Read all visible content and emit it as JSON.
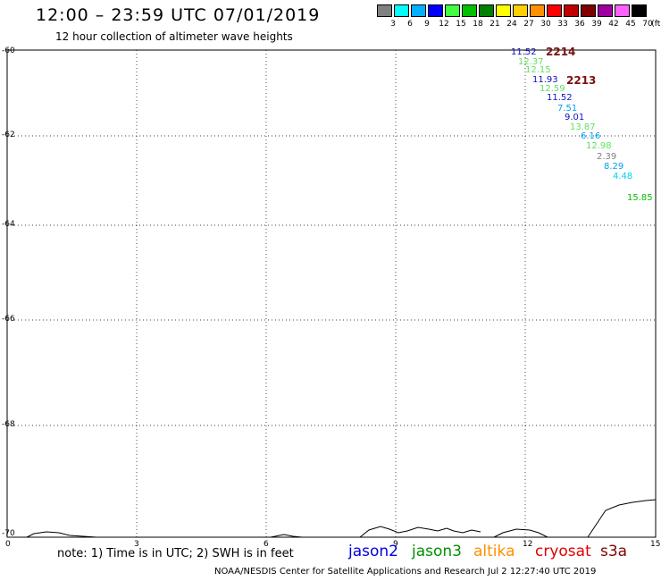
{
  "title": "12:00 – 23:59 UTC 07/01/2019",
  "subtitle": "12 hour collection of altimeter wave heights",
  "legend": {
    "unit": "(ft)",
    "items": [
      {
        "label": "3",
        "color": "#808080"
      },
      {
        "label": "6",
        "color": "#00ffff"
      },
      {
        "label": "9",
        "color": "#00b0ff"
      },
      {
        "label": "12",
        "color": "#0000ff"
      },
      {
        "label": "15",
        "color": "#40ff40"
      },
      {
        "label": "18",
        "color": "#00c000"
      },
      {
        "label": "21",
        "color": "#008000"
      },
      {
        "label": "24",
        "color": "#ffff00"
      },
      {
        "label": "27",
        "color": "#ffd000"
      },
      {
        "label": "30",
        "color": "#ff9000"
      },
      {
        "label": "33",
        "color": "#ff0000"
      },
      {
        "label": "36",
        "color": "#c00000"
      },
      {
        "label": "39",
        "color": "#800000"
      },
      {
        "label": "42",
        "color": "#a000a0"
      },
      {
        "label": "45",
        "color": "#ff60ff"
      },
      {
        "label": "70",
        "color": "#000000"
      }
    ]
  },
  "axes": {
    "y_labels": [
      "-60",
      "-62",
      "-64",
      "-66",
      "-68",
      "-70"
    ],
    "x_labels": [
      "0",
      "3",
      "6",
      "9",
      "12",
      "15"
    ]
  },
  "pass_labels": [
    "2214",
    "2213"
  ],
  "observations": [
    {
      "value": "11.52",
      "color": "#1010c0"
    },
    {
      "value": "12.37",
      "color": "#60e060"
    },
    {
      "value": "12.15",
      "color": "#60e060"
    },
    {
      "value": "11.93",
      "color": "#1010c0"
    },
    {
      "value": "12.59",
      "color": "#60e060"
    },
    {
      "value": "11.52",
      "color": "#1010c0"
    },
    {
      "value": "7.51",
      "color": "#00a0f0"
    },
    {
      "value": "9.01",
      "color": "#1010c0"
    },
    {
      "value": "13.87",
      "color": "#60e060"
    },
    {
      "value": "6.16",
      "color": "#00a0f0"
    },
    {
      "value": "12.98",
      "color": "#60e060"
    },
    {
      "value": "2.39",
      "color": "#808080"
    },
    {
      "value": "8.29",
      "color": "#00a0f0"
    },
    {
      "value": "4.48",
      "color": "#00d0f0"
    },
    {
      "value": "15.85",
      "color": "#00c000"
    }
  ],
  "note": "note: 1) Time is in UTC; 2) SWH is in feet",
  "satellites": [
    {
      "name": "jason2",
      "color": "#0000e0"
    },
    {
      "name": "jason3",
      "color": "#009000"
    },
    {
      "name": "altika",
      "color": "#ff9000"
    },
    {
      "name": "cryosat",
      "color": "#e00000"
    },
    {
      "name": "s3a",
      "color": "#800000"
    }
  ],
  "credit": "NOAA/NESDIS Center for Satellite Applications and Research   Jul  2 12:27:40 UTC 2019"
}
